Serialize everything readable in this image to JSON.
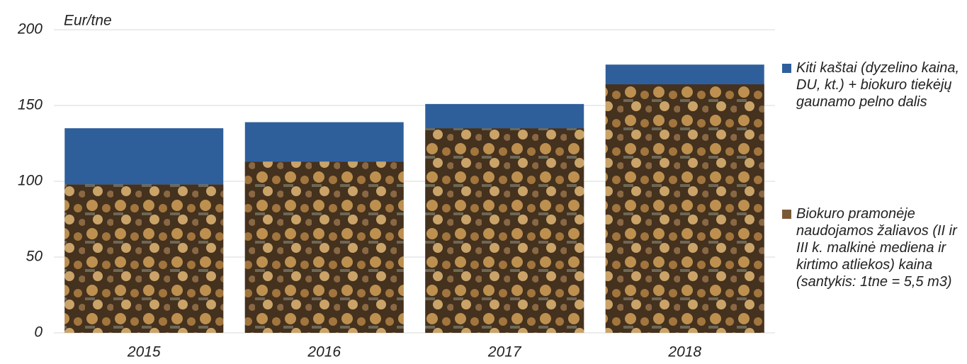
{
  "chart_data": {
    "type": "stacked_bar",
    "y_label": "Eur/tne",
    "categories": [
      "2015",
      "2016",
      "2017",
      "2018"
    ],
    "series": [
      {
        "name": "Biokuro pramonėje naudojamos žaliavos (II ir III k. malkinė mediena ir kirtimo atliekos) kaina (santykis: 1tne = 5,5 m3)",
        "color": "#7a5a36",
        "values": [
          98,
          113,
          135,
          164
        ]
      },
      {
        "name": "Kiti kaštai (dyzelino kaina, DU, kt.) + biokuro tiekėjų gaunamo pelno dalis",
        "color": "#2f5f9b",
        "values": [
          37,
          26,
          16,
          13
        ]
      }
    ],
    "ylim": [
      0,
      200
    ],
    "yticks": [
      0,
      50,
      100,
      150,
      200
    ],
    "grid": true
  }
}
